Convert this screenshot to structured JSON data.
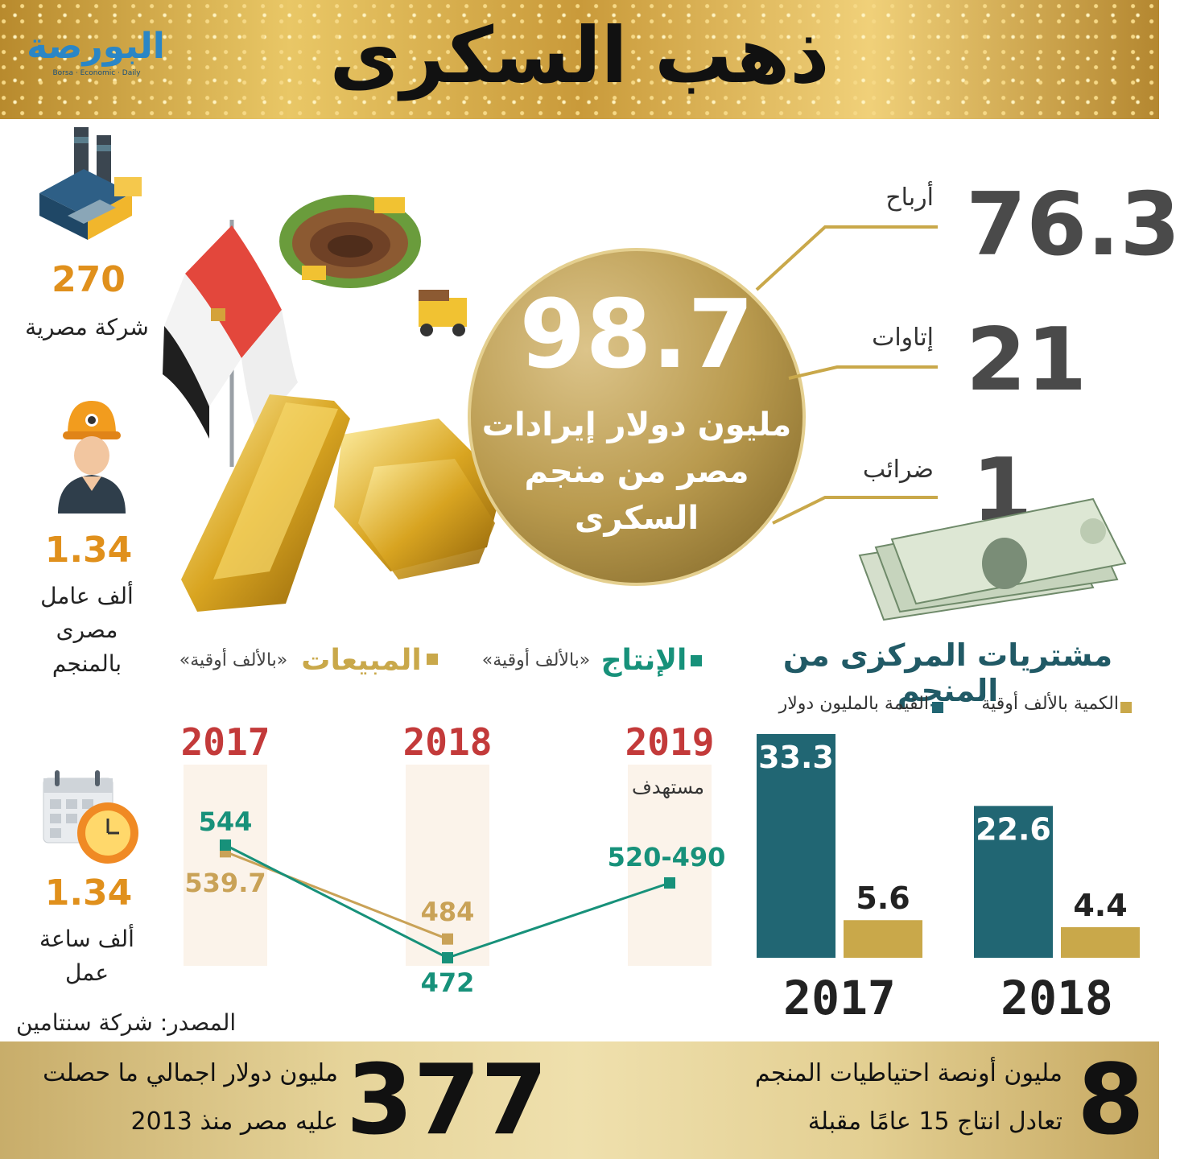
{
  "header": {
    "title": "ذهب السكرى",
    "logo_text": "البورصة",
    "logo_sub": "Borsa · Economic · Daily"
  },
  "colors": {
    "gold": "#c9a84a",
    "teal": "#216673",
    "green_line": "#17917a",
    "gold_line": "#c9a257",
    "orange": "#e0901c",
    "year_red": "#c33a3a"
  },
  "center": {
    "value": "98.7",
    "line1": "مليون دولار إيرادات",
    "line2": "مصر من منجم",
    "line3": "السكرى"
  },
  "breakdown": [
    {
      "value": "76.3",
      "label": "أرباح"
    },
    {
      "value": "21",
      "label": "إتاوات"
    },
    {
      "value": "1",
      "label": "ضرائب"
    }
  ],
  "side_stats": {
    "companies": {
      "value": "270",
      "label": "شركة مصرية"
    },
    "workers": {
      "value": "1.34",
      "label1": "ألف عامل",
      "label2": "مصرى",
      "label3": "بالمنجم"
    },
    "hours": {
      "value": "1.34",
      "label1": "ألف ساعة",
      "label2": "عمل"
    }
  },
  "icons": {
    "factory": "factory-icon",
    "worker": "worker-icon",
    "calendar": "calendar-clock-icon",
    "mine": "mine-icon",
    "flag": "egypt-flag-icon",
    "gold": "gold-bars-icon",
    "money": "money-icon"
  },
  "line_chart": {
    "legend_sales": "المبيعات",
    "legend_sales_unit": "«بالألف أوقية»",
    "legend_prod": "الإنتاج",
    "legend_prod_unit": "«بالألف أوقية»",
    "target_label": "مستهدف",
    "target_value": "520-490"
  },
  "bar_chart": {
    "title": "مشتريات المركزى من المنجم",
    "legend_qty": "الكمية بالألف أوقية",
    "legend_value": "القيمة بالمليون دولار"
  },
  "chart_data": [
    {
      "type": "line",
      "x": [
        "2017",
        "2018",
        "2019"
      ],
      "series": [
        {
          "name": "الإنتاج",
          "values": [
            544,
            472,
            505
          ],
          "labels": [
            "544",
            "472",
            "520-490"
          ]
        },
        {
          "name": "المبيعات",
          "values": [
            539.7,
            484,
            null
          ],
          "labels": [
            "539.7",
            "484",
            ""
          ]
        }
      ]
    },
    {
      "type": "bar",
      "title": "مشتريات المركزى من المنجم",
      "categories": [
        "2017",
        "2018"
      ],
      "series": [
        {
          "name": "القيمة بالمليون دولار",
          "values": [
            33.3,
            22.6
          ]
        },
        {
          "name": "الكمية بالألف أوقية",
          "values": [
            5.6,
            4.4
          ]
        }
      ]
    }
  ],
  "source": "المصدر: شركة سنتامين",
  "footer": {
    "left_value": "377",
    "left_line1": "مليون دولار اجمالي ما حصلت",
    "left_line2": "عليه مصر منذ 2013",
    "right_value": "8",
    "right_line1": "مليون أونصة احتياطيات المنجم",
    "right_line2": "تعادل انتاج 15 عامًا مقبلة"
  }
}
